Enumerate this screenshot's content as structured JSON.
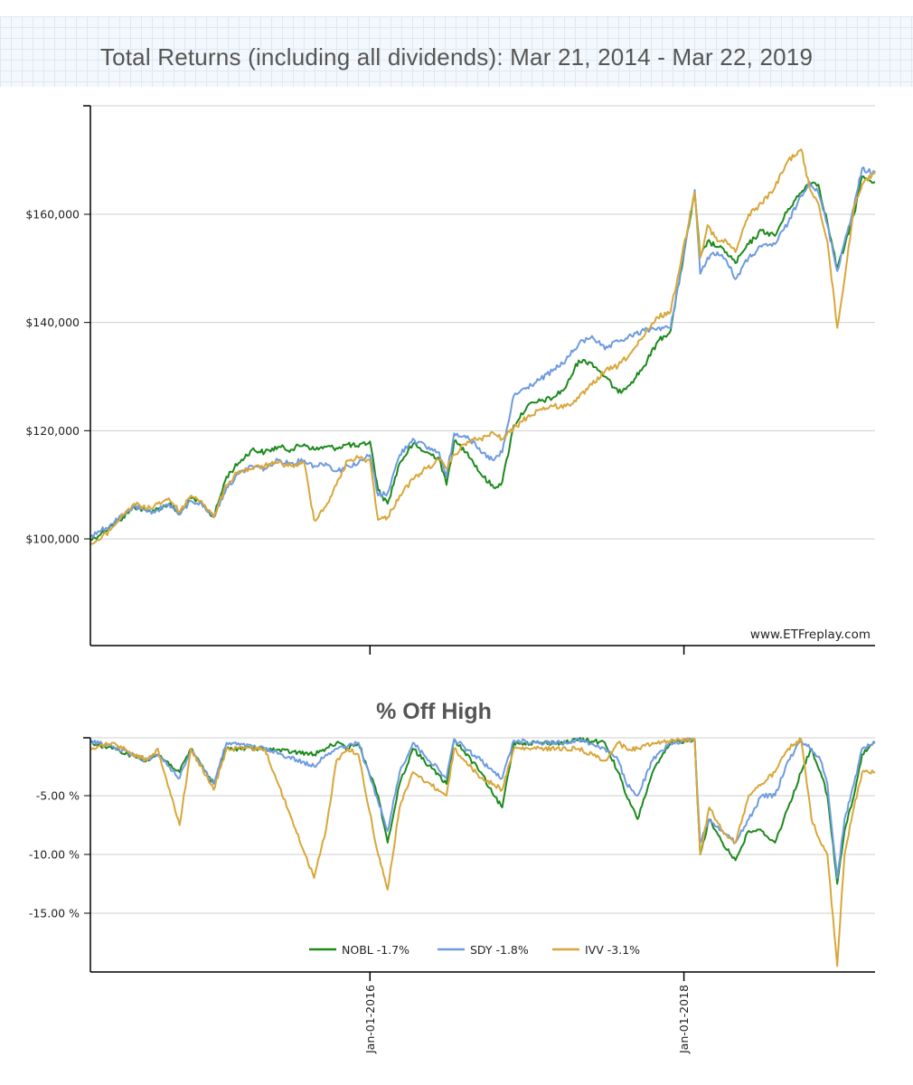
{
  "page_title": "Total Returns (including all dividends): Mar 21, 2014 - Mar 22, 2019",
  "watermark": "www.ETFreplay.com",
  "colors": {
    "NOBL": "#1d8a1d",
    "SDY": "#6f9be0",
    "IVV": "#d8a73a",
    "grid": "#cfcfcf",
    "axis": "#000000"
  },
  "legend": [
    {
      "series": "NOBL",
      "label": "NOBL -1.7%"
    },
    {
      "series": "SDY",
      "label": "SDY -1.8%"
    },
    {
      "series": "IVV",
      "label": "IVV -3.1%"
    }
  ],
  "chart_data": [
    {
      "type": "line",
      "title": "",
      "ylabel": "",
      "xlabel": "",
      "xlim": [
        "2014-03-21",
        "2019-03-22"
      ],
      "ylim": [
        80000,
        180000
      ],
      "y_ticks": [
        {
          "value": 100000,
          "label": "$100,000"
        },
        {
          "value": 120000,
          "label": "$120,000"
        },
        {
          "value": 140000,
          "label": "$140,000"
        },
        {
          "value": 160000,
          "label": "$160,000"
        }
      ],
      "grid": true,
      "series": [
        {
          "name": "NOBL",
          "x": [
            "2014-03-21",
            "2014-04-15",
            "2014-05-10",
            "2014-06-05",
            "2014-07-01",
            "2014-07-31",
            "2014-08-25",
            "2014-09-20",
            "2014-10-15",
            "2014-11-10",
            "2014-12-05",
            "2015-01-02",
            "2015-02-01",
            "2015-03-01",
            "2015-04-01",
            "2015-05-01",
            "2015-06-01",
            "2015-07-01",
            "2015-08-01",
            "2015-08-24",
            "2015-09-20",
            "2015-10-15",
            "2015-11-10",
            "2015-12-05",
            "2016-01-01",
            "2016-01-20",
            "2016-02-11",
            "2016-03-10",
            "2016-04-10",
            "2016-05-10",
            "2016-06-10",
            "2016-06-27",
            "2016-07-15",
            "2016-08-15",
            "2016-09-15",
            "2016-10-15",
            "2016-11-04",
            "2016-12-01",
            "2017-01-01",
            "2017-02-01",
            "2017-03-01",
            "2017-04-01",
            "2017-05-01",
            "2017-06-01",
            "2017-07-01",
            "2017-08-01",
            "2017-09-01",
            "2017-10-01",
            "2017-11-01",
            "2017-12-01",
            "2018-01-26",
            "2018-02-08",
            "2018-02-25",
            "2018-03-20",
            "2018-04-10",
            "2018-05-01",
            "2018-06-01",
            "2018-07-01",
            "2018-08-01",
            "2018-09-01",
            "2018-10-01",
            "2018-10-20",
            "2018-11-10",
            "2018-12-01",
            "2018-12-24",
            "2019-01-10",
            "2019-02-01",
            "2019-02-20",
            "2019-03-22"
          ],
          "values": [
            99800,
            101000,
            102500,
            104000,
            106000,
            105000,
            105500,
            106500,
            104500,
            107500,
            106500,
            104000,
            111500,
            114000,
            116500,
            116000,
            117000,
            116500,
            117500,
            116500,
            117000,
            116800,
            117500,
            117000,
            118000,
            109000,
            106500,
            114000,
            117500,
            116000,
            115000,
            110000,
            118000,
            116000,
            112000,
            109500,
            110500,
            121000,
            124500,
            125500,
            126000,
            128000,
            133000,
            132500,
            130000,
            127000,
            129000,
            132000,
            136500,
            138500,
            164000,
            152000,
            155000,
            154000,
            153000,
            151000,
            154500,
            157000,
            156000,
            161000,
            164000,
            166000,
            165500,
            158500,
            150000,
            154000,
            160000,
            167000,
            166000
          ]
        },
        {
          "name": "SDY",
          "x": [
            "2014-03-21",
            "2014-04-15",
            "2014-05-10",
            "2014-06-05",
            "2014-07-01",
            "2014-07-31",
            "2014-08-25",
            "2014-09-20",
            "2014-10-15",
            "2014-11-10",
            "2014-12-05",
            "2015-01-02",
            "2015-02-01",
            "2015-03-01",
            "2015-04-01",
            "2015-05-01",
            "2015-06-01",
            "2015-07-01",
            "2015-08-01",
            "2015-08-24",
            "2015-09-20",
            "2015-10-15",
            "2015-11-10",
            "2015-12-05",
            "2016-01-01",
            "2016-01-20",
            "2016-02-11",
            "2016-03-10",
            "2016-04-10",
            "2016-05-10",
            "2016-06-10",
            "2016-06-27",
            "2016-07-15",
            "2016-08-15",
            "2016-09-15",
            "2016-10-15",
            "2016-11-04",
            "2016-12-01",
            "2017-01-01",
            "2017-02-01",
            "2017-03-01",
            "2017-04-01",
            "2017-05-01",
            "2017-06-01",
            "2017-07-01",
            "2017-08-01",
            "2017-09-01",
            "2017-10-01",
            "2017-11-01",
            "2017-12-01",
            "2018-01-26",
            "2018-02-08",
            "2018-02-25",
            "2018-03-20",
            "2018-04-10",
            "2018-05-01",
            "2018-06-01",
            "2018-07-01",
            "2018-08-01",
            "2018-09-01",
            "2018-10-01",
            "2018-10-20",
            "2018-11-10",
            "2018-12-01",
            "2018-12-24",
            "2019-01-10",
            "2019-02-01",
            "2019-02-20",
            "2019-03-22"
          ],
          "values": [
            100300,
            101500,
            102800,
            104200,
            106000,
            105000,
            105300,
            106500,
            104500,
            107000,
            106500,
            104000,
            109500,
            112000,
            113500,
            113000,
            114500,
            114000,
            114500,
            113500,
            114000,
            112500,
            113500,
            114000,
            115500,
            108000,
            108500,
            115500,
            118500,
            117000,
            116000,
            111500,
            119500,
            119000,
            116000,
            114500,
            116000,
            126500,
            128000,
            129500,
            131000,
            133000,
            136000,
            137500,
            135000,
            136500,
            137500,
            138500,
            139000,
            139000,
            164500,
            149000,
            152000,
            153000,
            151500,
            148000,
            152000,
            154000,
            154500,
            158500,
            163500,
            166000,
            164000,
            158000,
            149500,
            155000,
            161500,
            168500,
            167500
          ]
        },
        {
          "name": "IVV",
          "x": [
            "2014-03-21",
            "2014-04-15",
            "2014-05-10",
            "2014-06-05",
            "2014-07-01",
            "2014-07-31",
            "2014-08-25",
            "2014-09-20",
            "2014-10-15",
            "2014-11-10",
            "2014-12-05",
            "2015-01-02",
            "2015-02-01",
            "2015-03-01",
            "2015-04-01",
            "2015-05-01",
            "2015-06-01",
            "2015-07-01",
            "2015-08-01",
            "2015-08-24",
            "2015-09-20",
            "2015-10-15",
            "2015-11-10",
            "2015-12-05",
            "2016-01-01",
            "2016-01-20",
            "2016-02-11",
            "2016-03-10",
            "2016-04-10",
            "2016-05-10",
            "2016-06-10",
            "2016-06-27",
            "2016-07-15",
            "2016-08-15",
            "2016-09-15",
            "2016-10-15",
            "2016-11-04",
            "2016-12-01",
            "2017-01-01",
            "2017-02-01",
            "2017-03-01",
            "2017-04-01",
            "2017-05-01",
            "2017-06-01",
            "2017-07-01",
            "2017-08-01",
            "2017-09-01",
            "2017-10-01",
            "2017-11-01",
            "2017-12-01",
            "2018-01-26",
            "2018-02-08",
            "2018-02-25",
            "2018-03-20",
            "2018-04-10",
            "2018-05-01",
            "2018-06-01",
            "2018-07-01",
            "2018-08-01",
            "2018-09-01",
            "2018-10-01",
            "2018-10-20",
            "2018-11-10",
            "2018-12-01",
            "2018-12-24",
            "2019-01-10",
            "2019-02-01",
            "2019-02-20",
            "2019-03-22"
          ],
          "values": [
            99000,
            100000,
            102000,
            104500,
            106500,
            105500,
            106500,
            107500,
            105000,
            108000,
            107000,
            104000,
            110000,
            112500,
            113000,
            113500,
            114000,
            113500,
            114000,
            103500,
            106000,
            110000,
            114500,
            115000,
            114500,
            103500,
            104000,
            108000,
            111000,
            113000,
            114500,
            113000,
            115500,
            118000,
            118500,
            119500,
            118500,
            120500,
            122500,
            124000,
            124500,
            124500,
            126000,
            128500,
            131000,
            132000,
            134500,
            137500,
            141000,
            142000,
            164000,
            152000,
            158000,
            155000,
            155000,
            153000,
            160000,
            162000,
            165000,
            170000,
            172000,
            165000,
            162000,
            155000,
            139000,
            148000,
            161500,
            165500,
            168000
          ]
        }
      ]
    },
    {
      "type": "line",
      "title": "% Off High",
      "ylabel": "",
      "xlabel": "",
      "xlim": [
        "2014-03-21",
        "2019-03-22"
      ],
      "ylim": [
        -20,
        0
      ],
      "y_ticks": [
        {
          "value": -5,
          "label": "-5.00 %"
        },
        {
          "value": -10,
          "label": "-10.00 %"
        },
        {
          "value": -15,
          "label": "-15.00 %"
        }
      ],
      "x_ticks": [
        {
          "value": "2016-01-01",
          "label": "Jan-01-2016"
        },
        {
          "value": "2018-01-01",
          "label": "Jan-01-2018"
        }
      ],
      "grid": true,
      "legend_position": "bottom-center",
      "series": [
        {
          "name": "NOBL",
          "x": [
            "2014-03-21",
            "2014-05-10",
            "2014-07-31",
            "2014-08-25",
            "2014-10-15",
            "2014-11-10",
            "2015-01-02",
            "2015-02-01",
            "2015-05-01",
            "2015-08-24",
            "2015-09-20",
            "2015-10-15",
            "2015-11-10",
            "2015-12-05",
            "2016-01-20",
            "2016-02-11",
            "2016-03-10",
            "2016-04-10",
            "2016-06-27",
            "2016-07-15",
            "2016-09-15",
            "2016-10-15",
            "2016-11-04",
            "2016-12-01",
            "2017-02-01",
            "2017-04-01",
            "2017-05-01",
            "2017-07-01",
            "2017-08-01",
            "2017-08-20",
            "2017-09-15",
            "2017-10-20",
            "2017-12-01",
            "2018-01-26",
            "2018-02-08",
            "2018-03-01",
            "2018-04-01",
            "2018-05-01",
            "2018-06-01",
            "2018-07-01",
            "2018-08-01",
            "2018-09-01",
            "2018-10-01",
            "2018-10-25",
            "2018-11-15",
            "2018-12-01",
            "2018-12-24",
            "2019-01-10",
            "2019-02-01",
            "2019-02-20",
            "2019-03-22"
          ],
          "values": [
            -0.5,
            -1.0,
            -2.0,
            -1.5,
            -3.0,
            -1.0,
            -4.0,
            -1.0,
            -1.0,
            -1.5,
            -1.0,
            -0.5,
            -1.0,
            -0.5,
            -5.0,
            -9.0,
            -4.0,
            -1.0,
            -4.0,
            -0.2,
            -3.0,
            -5.0,
            -6.0,
            -0.5,
            -0.5,
            -0.5,
            -0.2,
            -0.5,
            -3.0,
            -5.0,
            -7.0,
            -3.0,
            -0.5,
            -0.2,
            -10.0,
            -7.0,
            -9.0,
            -10.5,
            -8.0,
            -8.0,
            -9.0,
            -6.0,
            -3.0,
            -1.0,
            -3.0,
            -5.0,
            -12.5,
            -8.0,
            -5.0,
            -1.5,
            -0.5
          ]
        },
        {
          "name": "SDY",
          "x": [
            "2014-03-21",
            "2014-05-10",
            "2014-07-31",
            "2014-08-25",
            "2014-10-15",
            "2014-11-10",
            "2015-01-02",
            "2015-02-01",
            "2015-05-01",
            "2015-08-24",
            "2015-09-20",
            "2015-10-15",
            "2015-11-10",
            "2015-12-05",
            "2016-01-20",
            "2016-02-11",
            "2016-03-10",
            "2016-04-10",
            "2016-06-27",
            "2016-07-15",
            "2016-09-15",
            "2016-10-15",
            "2016-11-04",
            "2016-12-01",
            "2017-02-01",
            "2017-04-01",
            "2017-05-01",
            "2017-07-01",
            "2017-08-01",
            "2017-08-20",
            "2017-09-15",
            "2017-10-20",
            "2017-12-01",
            "2018-01-26",
            "2018-02-08",
            "2018-03-01",
            "2018-04-01",
            "2018-05-01",
            "2018-06-01",
            "2018-07-01",
            "2018-08-01",
            "2018-09-01",
            "2018-10-01",
            "2018-10-25",
            "2018-11-15",
            "2018-12-01",
            "2018-12-24",
            "2019-01-10",
            "2019-02-01",
            "2019-02-20",
            "2019-03-22"
          ],
          "values": [
            -0.3,
            -0.8,
            -2.0,
            -1.5,
            -3.5,
            -1.0,
            -4.0,
            -0.5,
            -1.0,
            -2.5,
            -1.5,
            -1.0,
            -0.8,
            -0.5,
            -5.5,
            -8.0,
            -3.0,
            -0.5,
            -3.5,
            -0.2,
            -2.0,
            -3.0,
            -3.5,
            -0.3,
            -0.5,
            -0.5,
            -0.2,
            -1.0,
            -2.0,
            -4.0,
            -5.0,
            -2.0,
            -0.5,
            -0.2,
            -9.0,
            -7.0,
            -8.0,
            -9.0,
            -7.0,
            -5.0,
            -5.0,
            -2.0,
            -0.3,
            -1.0,
            -2.0,
            -4.0,
            -12.0,
            -7.0,
            -4.0,
            -1.0,
            -0.5
          ]
        },
        {
          "name": "IVV",
          "x": [
            "2014-03-21",
            "2014-05-10",
            "2014-07-31",
            "2014-08-25",
            "2014-10-15",
            "2014-11-10",
            "2015-01-02",
            "2015-02-01",
            "2015-05-01",
            "2015-08-24",
            "2015-09-20",
            "2015-10-15",
            "2015-11-10",
            "2015-12-05",
            "2016-01-20",
            "2016-02-11",
            "2016-03-10",
            "2016-04-10",
            "2016-06-27",
            "2016-07-15",
            "2016-09-15",
            "2016-10-15",
            "2016-11-04",
            "2016-12-01",
            "2017-02-01",
            "2017-04-01",
            "2017-05-01",
            "2017-07-01",
            "2017-08-01",
            "2017-08-20",
            "2017-09-15",
            "2017-10-20",
            "2017-12-01",
            "2018-01-26",
            "2018-02-08",
            "2018-03-01",
            "2018-04-01",
            "2018-05-01",
            "2018-06-01",
            "2018-07-01",
            "2018-08-01",
            "2018-09-01",
            "2018-10-01",
            "2018-10-25",
            "2018-11-15",
            "2018-12-01",
            "2018-12-24",
            "2019-01-10",
            "2019-02-01",
            "2019-02-20",
            "2019-03-22"
          ],
          "values": [
            -1.0,
            -0.5,
            -2.0,
            -1.0,
            -7.5,
            -1.0,
            -4.5,
            -1.0,
            -1.0,
            -12.0,
            -8.0,
            -2.0,
            -1.0,
            -1.5,
            -10.0,
            -13.0,
            -6.0,
            -3.0,
            -5.0,
            -1.0,
            -3.5,
            -4.0,
            -4.5,
            -1.0,
            -1.0,
            -1.0,
            -1.0,
            -2.0,
            -0.5,
            -1.0,
            -1.0,
            -0.5,
            -0.3,
            -0.2,
            -10.0,
            -6.0,
            -8.0,
            -9.0,
            -5.0,
            -4.0,
            -3.0,
            -1.0,
            -0.2,
            -7.0,
            -9.0,
            -10.0,
            -19.5,
            -10.0,
            -6.0,
            -3.0,
            -3.0
          ]
        }
      ]
    }
  ]
}
